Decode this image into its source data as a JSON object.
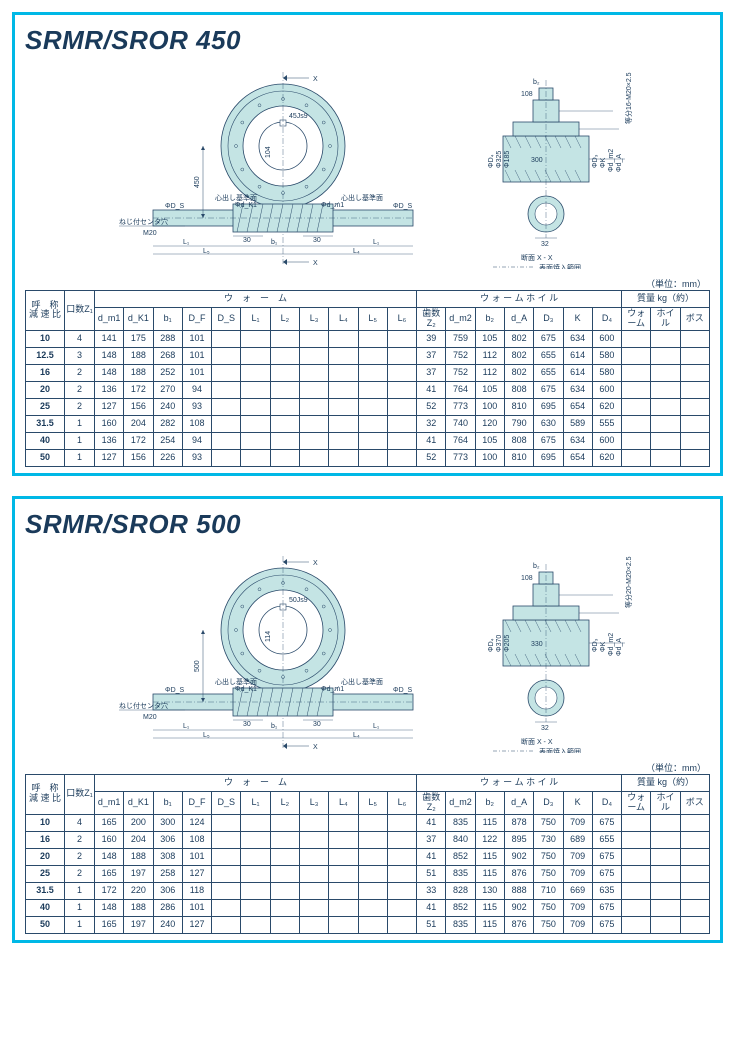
{
  "unit_text": "（単位：mm）",
  "panels": [
    {
      "title": "SRMR/SROR 450",
      "diagram": {
        "thread_note": "ねじ付センタ穴",
        "thread_spec": "M20",
        "ref_label": "心出し基準面",
        "x_marker": "X",
        "center_dist": "450",
        "keyway": "45Js9",
        "bore": "104",
        "section_label": "断面 X - X",
        "surface_note": "表面焼入範囲",
        "d_inner": "Φ185",
        "d_mid": "Φ325",
        "proj": "300",
        "bolt_note": "等分16‑M20×2.5",
        "b2": "108",
        "shaft_w": "32",
        "dim_L": "30"
      },
      "table": {
        "header_ratio": "呼　称\n減 速 比",
        "header_z1": "口数Z₁",
        "header_worm": "ウ　ォ　ー　ム",
        "header_wheel": "ウ ォ ー ム ホ イ ル",
        "header_mass": "質量 kg（約）",
        "worm_cols": [
          "d_m1",
          "d_K1",
          "b₁",
          "D_F",
          "D_S",
          "L₁",
          "L₂",
          "L₃",
          "L₄",
          "L₅",
          "L₆"
        ],
        "wheel_cols": [
          "歯数Z₂",
          "d_m2",
          "b₂",
          "d_A",
          "D₃",
          "K",
          "D₄"
        ],
        "mass_cols": [
          "ウォーム",
          "ホイル",
          "ボス"
        ],
        "rows": [
          {
            "ratio": "10",
            "z1": "4",
            "worm": [
              "141",
              "175",
              "288",
              "101",
              "",
              "",
              "",
              "",
              "",
              "",
              ""
            ],
            "wheel": [
              "39",
              "759",
              "105",
              "802",
              "675",
              "634",
              "600"
            ],
            "mass": [
              "",
              "",
              ""
            ]
          },
          {
            "ratio": "12.5",
            "z1": "3",
            "worm": [
              "148",
              "188",
              "268",
              "101",
              "",
              "",
              "",
              "",
              "",
              "",
              ""
            ],
            "wheel": [
              "37",
              "752",
              "112",
              "802",
              "655",
              "614",
              "580"
            ],
            "mass": [
              "",
              "",
              ""
            ]
          },
          {
            "ratio": "16",
            "z1": "2",
            "worm": [
              "148",
              "188",
              "252",
              "101",
              "",
              "",
              "",
              "",
              "",
              "",
              ""
            ],
            "wheel": [
              "37",
              "752",
              "112",
              "802",
              "655",
              "614",
              "580"
            ],
            "mass": [
              "",
              "",
              ""
            ]
          },
          {
            "ratio": "20",
            "z1": "2",
            "worm": [
              "136",
              "172",
              "270",
              "94",
              "",
              "",
              "",
              "",
              "",
              "",
              ""
            ],
            "wheel": [
              "41",
              "764",
              "105",
              "808",
              "675",
              "634",
              "600"
            ],
            "mass": [
              "",
              "",
              ""
            ]
          },
          {
            "ratio": "25",
            "z1": "2",
            "worm": [
              "127",
              "156",
              "240",
              "93",
              "",
              "",
              "",
              "",
              "",
              "",
              ""
            ],
            "wheel": [
              "52",
              "773",
              "100",
              "810",
              "695",
              "654",
              "620"
            ],
            "mass": [
              "",
              "",
              ""
            ]
          },
          {
            "ratio": "31.5",
            "z1": "1",
            "worm": [
              "160",
              "204",
              "282",
              "108",
              "",
              "",
              "",
              "",
              "",
              "",
              ""
            ],
            "wheel": [
              "32",
              "740",
              "120",
              "790",
              "630",
              "589",
              "555"
            ],
            "mass": [
              "",
              "",
              ""
            ]
          },
          {
            "ratio": "40",
            "z1": "1",
            "worm": [
              "136",
              "172",
              "254",
              "94",
              "",
              "",
              "",
              "",
              "",
              "",
              ""
            ],
            "wheel": [
              "41",
              "764",
              "105",
              "808",
              "675",
              "634",
              "600"
            ],
            "mass": [
              "",
              "",
              ""
            ]
          },
          {
            "ratio": "50",
            "z1": "1",
            "worm": [
              "127",
              "156",
              "226",
              "93",
              "",
              "",
              "",
              "",
              "",
              "",
              ""
            ],
            "wheel": [
              "52",
              "773",
              "100",
              "810",
              "695",
              "654",
              "620"
            ],
            "mass": [
              "",
              "",
              ""
            ]
          }
        ]
      }
    },
    {
      "title": "SRMR/SROR 500",
      "diagram": {
        "thread_note": "ねじ付センタ穴",
        "thread_spec": "M20",
        "ref_label": "心出し基準面",
        "x_marker": "X",
        "center_dist": "500",
        "keyway": "50Js9",
        "bore": "114",
        "section_label": "断面 X - X",
        "surface_note": "表面焼入範囲",
        "d_inner": "Φ205",
        "d_mid": "Φ370",
        "proj": "330",
        "bolt_note": "等分20‑M20×2.5",
        "b2": "108",
        "shaft_w": "32",
        "dim_L": "30"
      },
      "table": {
        "header_ratio": "呼　称\n減 速 比",
        "header_z1": "口数Z₁",
        "header_worm": "ウ　ォ　ー　ム",
        "header_wheel": "ウ ォ ー ム ホ イ ル",
        "header_mass": "質量 kg（約）",
        "worm_cols": [
          "d_m1",
          "d_K1",
          "b₁",
          "D_F",
          "D_S",
          "L₁",
          "L₂",
          "L₃",
          "L₄",
          "L₅",
          "L₆"
        ],
        "wheel_cols": [
          "歯数Z₂",
          "d_m2",
          "b₂",
          "d_A",
          "D₃",
          "K",
          "D₄"
        ],
        "mass_cols": [
          "ウォーム",
          "ホイル",
          "ボス"
        ],
        "rows": [
          {
            "ratio": "10",
            "z1": "4",
            "worm": [
              "165",
              "200",
              "300",
              "124",
              "",
              "",
              "",
              "",
              "",
              "",
              ""
            ],
            "wheel": [
              "41",
              "835",
              "115",
              "878",
              "750",
              "709",
              "675"
            ],
            "mass": [
              "",
              "",
              ""
            ]
          },
          {
            "ratio": "16",
            "z1": "2",
            "worm": [
              "160",
              "204",
              "306",
              "108",
              "",
              "",
              "",
              "",
              "",
              "",
              ""
            ],
            "wheel": [
              "37",
              "840",
              "122",
              "895",
              "730",
              "689",
              "655"
            ],
            "mass": [
              "",
              "",
              ""
            ]
          },
          {
            "ratio": "20",
            "z1": "2",
            "worm": [
              "148",
              "188",
              "308",
              "101",
              "",
              "",
              "",
              "",
              "",
              "",
              ""
            ],
            "wheel": [
              "41",
              "852",
              "115",
              "902",
              "750",
              "709",
              "675"
            ],
            "mass": [
              "",
              "",
              ""
            ]
          },
          {
            "ratio": "25",
            "z1": "2",
            "worm": [
              "165",
              "197",
              "258",
              "127",
              "",
              "",
              "",
              "",
              "",
              "",
              ""
            ],
            "wheel": [
              "51",
              "835",
              "115",
              "876",
              "750",
              "709",
              "675"
            ],
            "mass": [
              "",
              "",
              ""
            ]
          },
          {
            "ratio": "31.5",
            "z1": "1",
            "worm": [
              "172",
              "220",
              "306",
              "118",
              "",
              "",
              "",
              "",
              "",
              "",
              ""
            ],
            "wheel": [
              "33",
              "828",
              "130",
              "888",
              "710",
              "669",
              "635"
            ],
            "mass": [
              "",
              "",
              ""
            ]
          },
          {
            "ratio": "40",
            "z1": "1",
            "worm": [
              "148",
              "188",
              "286",
              "101",
              "",
              "",
              "",
              "",
              "",
              "",
              ""
            ],
            "wheel": [
              "41",
              "852",
              "115",
              "902",
              "750",
              "709",
              "675"
            ],
            "mass": [
              "",
              "",
              ""
            ]
          },
          {
            "ratio": "50",
            "z1": "1",
            "worm": [
              "165",
              "197",
              "240",
              "127",
              "",
              "",
              "",
              "",
              "",
              "",
              ""
            ],
            "wheel": [
              "51",
              "835",
              "115",
              "876",
              "750",
              "709",
              "675"
            ],
            "mass": [
              "",
              "",
              ""
            ]
          }
        ]
      }
    }
  ],
  "colors": {
    "border": "#00b8e6",
    "line": "#2a4a6a",
    "fill": "#c4e4e4",
    "text": "#1a3a5a"
  }
}
